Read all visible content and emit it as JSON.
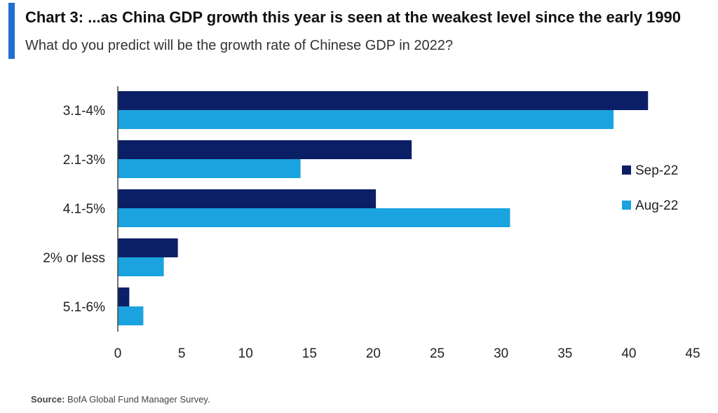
{
  "header": {
    "title": "Chart 3: ...as China GDP growth this year is seen at the weakest level since the early 1990",
    "subtitle": "What do you predict will be the growth rate of Chinese GDP in 2022?"
  },
  "footer": {
    "source_label": "Source:",
    "source_text": "BofA Global Fund Manager Survey."
  },
  "colors": {
    "accent": "#1f6fd1",
    "sep22": "#0b1f66",
    "aug22": "#1aa3df"
  },
  "chart_data": {
    "type": "bar",
    "orientation": "horizontal",
    "categories": [
      "3.1-4%",
      "2.1-3%",
      "4.1-5%",
      "2% or less",
      "5.1-6%"
    ],
    "series": [
      {
        "name": "Sep-22",
        "values": [
          41.5,
          23,
          20.2,
          4.7,
          0.9
        ],
        "color": "#0b1f66"
      },
      {
        "name": "Aug-22",
        "values": [
          38.8,
          14.3,
          30.7,
          3.6,
          2.0
        ],
        "color": "#1aa3df"
      }
    ],
    "xlim": [
      0,
      45
    ],
    "xticks": [
      0,
      5,
      10,
      15,
      20,
      25,
      30,
      35,
      40,
      45
    ],
    "legend_position": "right",
    "grid": false,
    "title": "",
    "xlabel": "",
    "ylabel": ""
  }
}
